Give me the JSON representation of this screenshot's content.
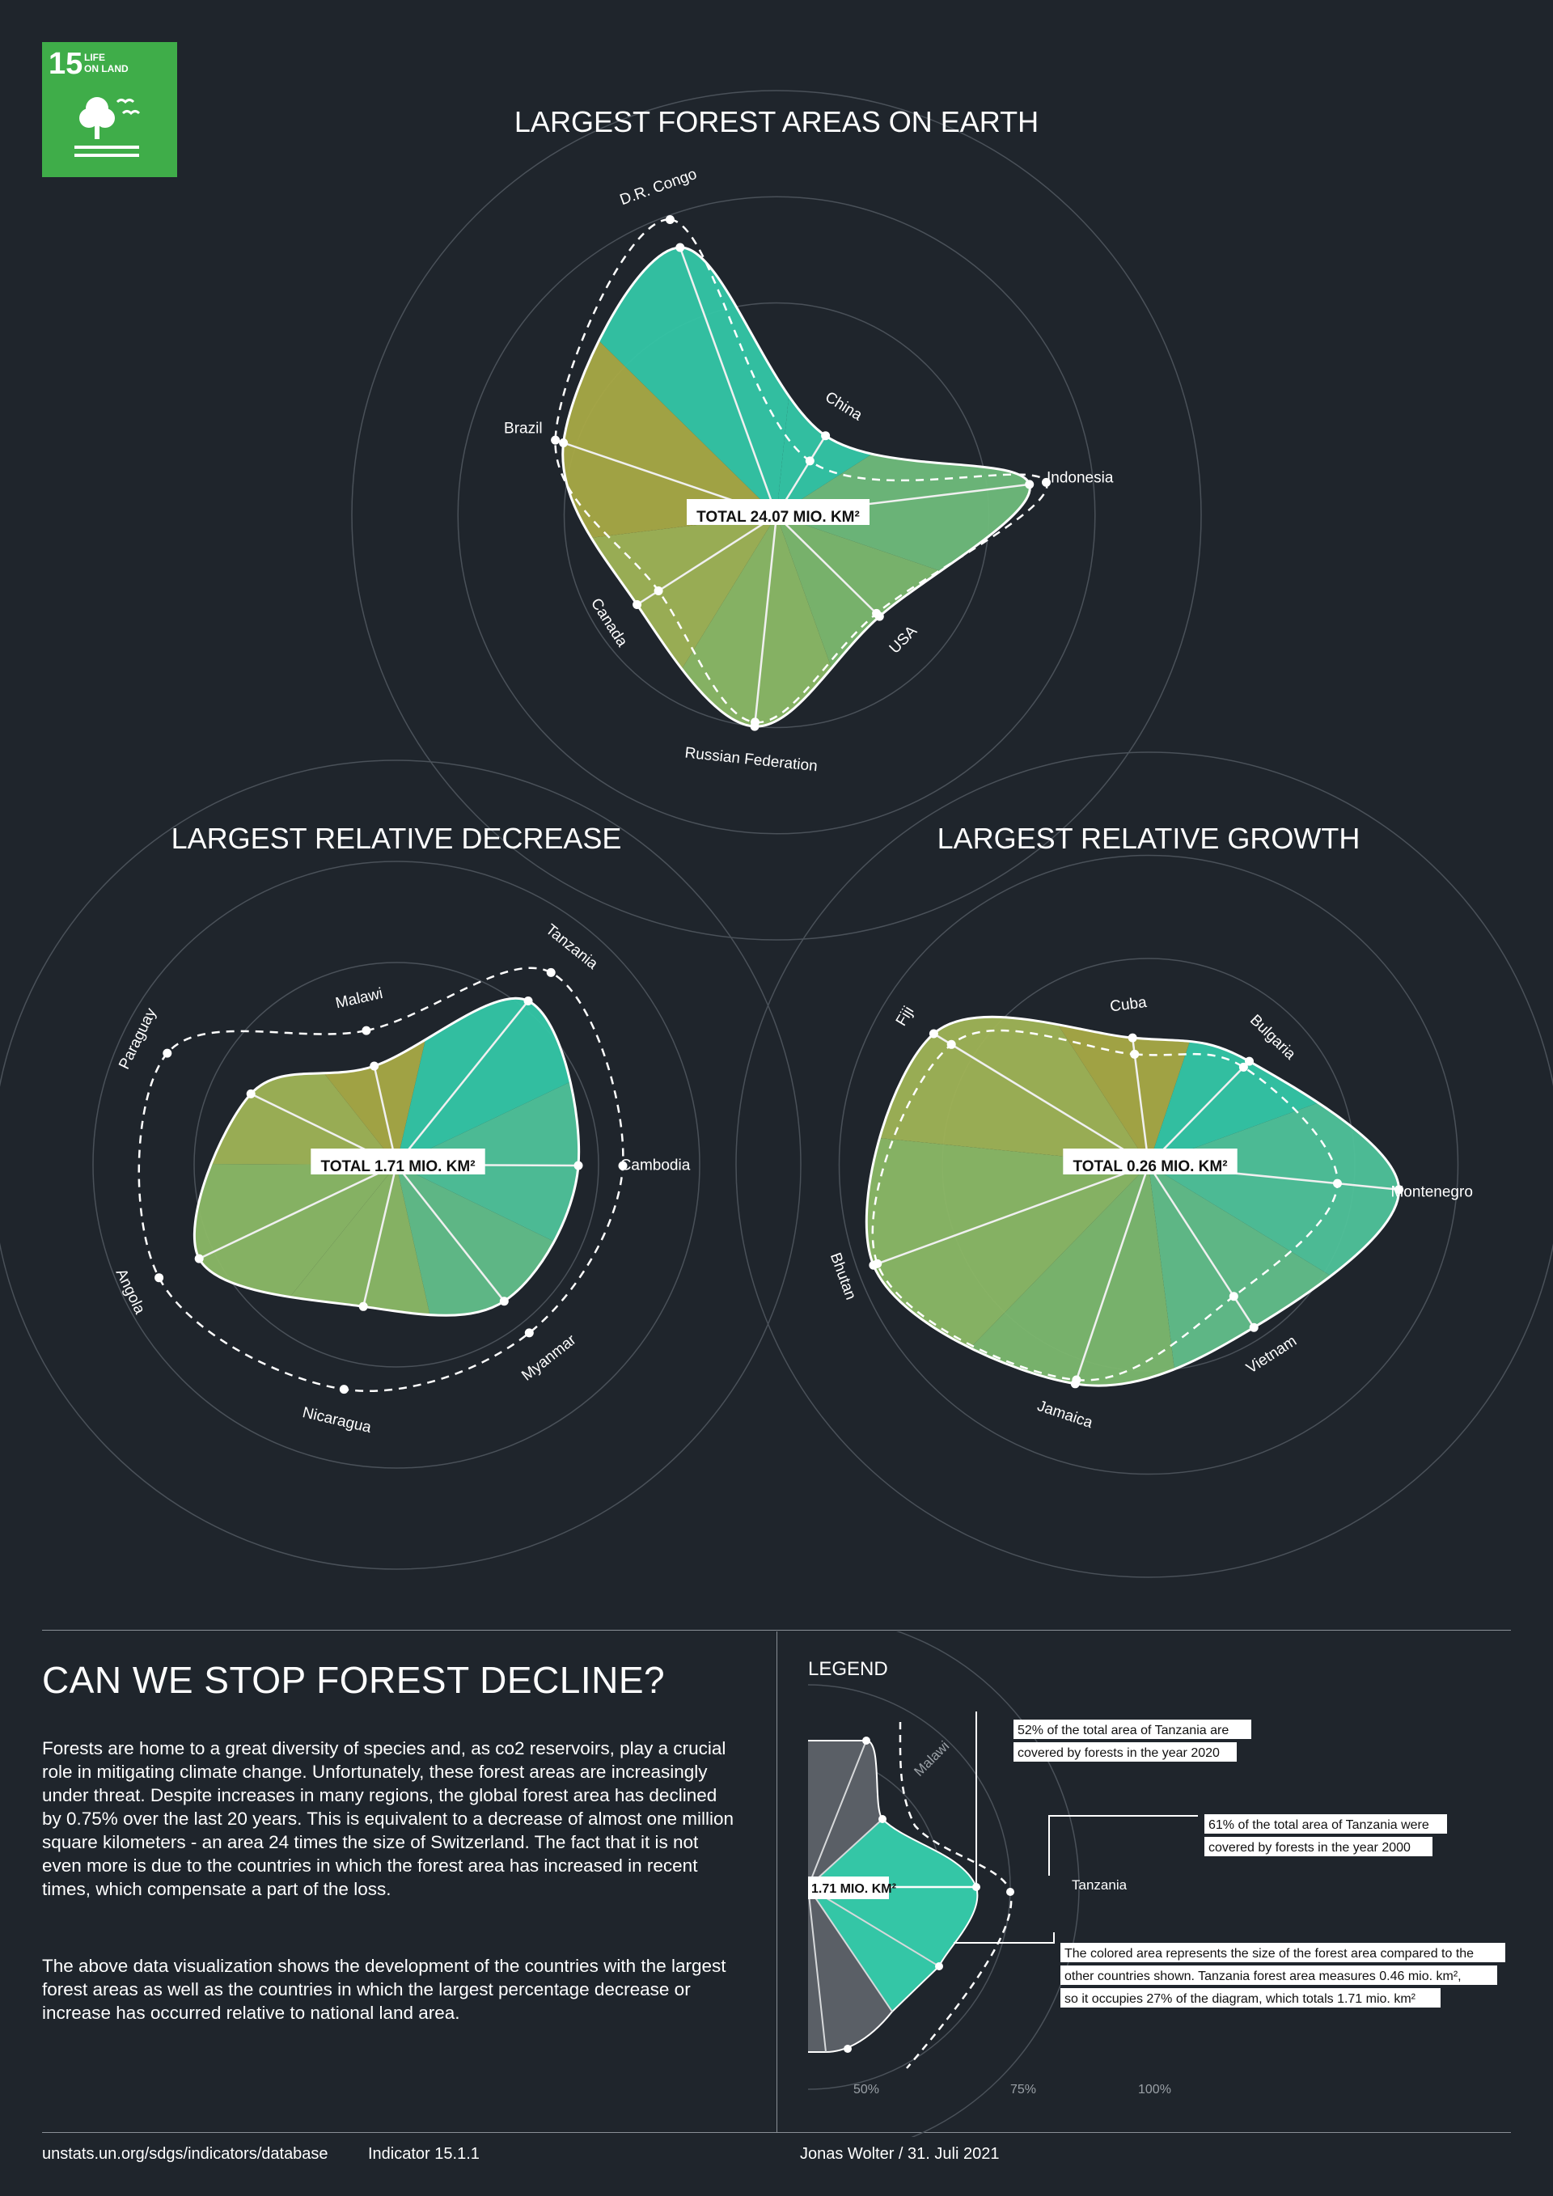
{
  "badge": {
    "number": "15",
    "text_line1": "LIFE",
    "text_line2": "ON LAND",
    "color": "#3fad49"
  },
  "colors": {
    "background": "#1f252c",
    "olive": "#a8a946",
    "teal": "#34c6a6",
    "green": "#8bb866",
    "grid": "#4a5159"
  },
  "chart_data": [
    {
      "type": "radar-area",
      "title": "LARGEST FOREST AREAS ON EARTH",
      "total_label": "TOTAL 24.07 MIO. KM²",
      "axes": [
        "D.R. Congo",
        "China",
        "Indonesia",
        "USA",
        "Russian Federation",
        "Canada",
        "Brazil"
      ],
      "radial_ticks_pct": [
        50,
        75,
        100
      ],
      "series": [
        {
          "year": "2000",
          "values": [
            74,
            15,
            64,
            33,
            49,
            33,
            55
          ]
        },
        {
          "year": "2020",
          "values": [
            67,
            22,
            60,
            34,
            50,
            39,
            53
          ]
        }
      ]
    },
    {
      "type": "radar-area",
      "title": "LARGEST RELATIVE DECREASE",
      "total_label": "TOTAL 1.71 MIO. KM²",
      "axes": [
        "Malawi",
        "Tanzania",
        "Cambodia",
        "Myanmar",
        "Nicaragua",
        "Angola",
        "Paraguay"
      ],
      "radial_ticks_pct": [
        50,
        75,
        100
      ],
      "series": [
        {
          "year": "2000",
          "values": [
            34,
            61,
            56,
            53,
            57,
            65,
            63
          ]
        },
        {
          "year": "2020",
          "values": [
            25,
            52,
            45,
            43,
            36,
            54,
            40
          ]
        }
      ]
    },
    {
      "type": "radar-area",
      "title": "LARGEST RELATIVE GROWTH",
      "total_label": "TOTAL 0.26 MIO. KM²",
      "axes": [
        "Cuba",
        "Bulgaria",
        "Montenegro",
        "Vietnam",
        "Jamaica",
        "Bhutan",
        "Fiji"
      ],
      "radial_ticks_pct": [
        50,
        75,
        100
      ],
      "series": [
        {
          "year": "2000",
          "values": [
            27,
            33,
            46,
            38,
            55,
            70,
            56
          ]
        },
        {
          "year": "2020",
          "values": [
            31,
            35,
            61,
            47,
            56,
            71,
            61
          ]
        }
      ]
    }
  ],
  "text": {
    "headline": "CAN WE STOP FOREST DECLINE?",
    "para1": "Forests are home to a great diversity of species and, as co2 reservoirs, play a crucial role in mitigating climate change. Unfortunately, these forest areas are increasingly under threat. Despite increases in many regions, the global forest area has declined by 0.75% over the last 20 years. This is equivalent to a decrease of almost one million square kilometers - an area 24 times the size of Switzerland. The fact that it is not even more is due to the countries in which the forest area has increased in recent times, which compensate a part of the loss.",
    "para2": "The above data visualization shows the development of the countries with the largest forest areas as well as the countries in which the largest percentage decrease or increase has occurred relative to national land area."
  },
  "legend": {
    "title": "LEGEND",
    "total_label": "1.71 MIO. KM²",
    "axis_malawi": "Malawi",
    "axis_tanzania": "Tanzania",
    "note1_line1": "52% of the total area of Tanzania are",
    "note1_line2": "covered by forests in the year 2020",
    "note2_line1": "61% of the total area of Tanzania were",
    "note2_line2": "covered by forests in the year 2000",
    "note3_line1": "The colored area represents the size of the forest area compared to the",
    "note3_line2": "other countries shown. Tanzania forest area measures 0.46 mio. km²,",
    "note3_line3": "so it occupies 27% of the diagram, which totals 1.71 mio. km²",
    "tick_50": "50%",
    "tick_75": "75%",
    "tick_100": "100%"
  },
  "footer": {
    "source": "unstats.un.org/sdgs/indicators/database",
    "indicator": "Indicator 15.1.1",
    "author": "Jonas Wolter / 31. Juli 2021"
  }
}
